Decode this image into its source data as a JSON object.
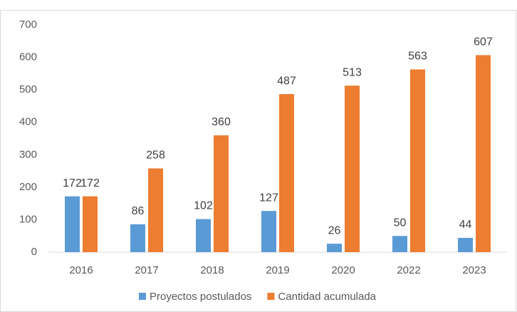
{
  "chart_data": {
    "type": "bar",
    "categories": [
      "2016",
      "2017",
      "2018",
      "2019",
      "2020",
      "2022",
      "2023"
    ],
    "series": [
      {
        "name": "Proyectos postulados",
        "color": "#5b9bd5",
        "values": [
          172,
          86,
          102,
          127,
          26,
          50,
          44
        ]
      },
      {
        "name": "Cantidad acumulada",
        "color": "#ed7d31",
        "values": [
          172,
          258,
          360,
          487,
          513,
          563,
          607
        ]
      }
    ],
    "ylim": [
      0,
      700
    ],
    "yticks": [
      0,
      100,
      200,
      300,
      400,
      500,
      600,
      700
    ],
    "grid": false,
    "legend": "bottom"
  }
}
